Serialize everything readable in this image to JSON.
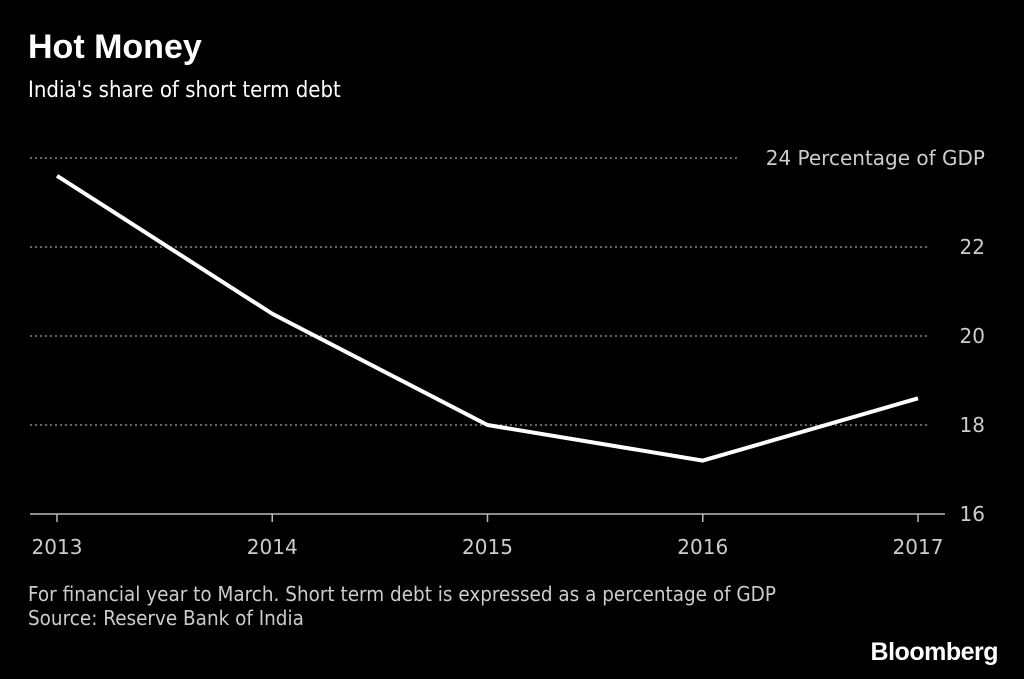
{
  "chart_data": {
    "type": "line",
    "title": "Hot Money",
    "subtitle": "India's share of short term debt",
    "x": [
      "2013",
      "2014",
      "2015",
      "2016",
      "2017"
    ],
    "series": [
      {
        "name": "Short term debt (% of GDP)",
        "values": [
          23.6,
          20.5,
          18.0,
          17.2,
          18.6
        ],
        "color": "#ffffff"
      }
    ],
    "ylabel": "Percentage of GDP",
    "ylim": [
      16,
      24
    ],
    "yticks": [
      16,
      18,
      20,
      22,
      24
    ],
    "ytick_labels": [
      "16",
      "18",
      "20",
      "22",
      "24 Percentage of GDP"
    ],
    "grid": true,
    "yaxis_side": "right"
  },
  "footer": {
    "note": "For financial year to March. Short term debt is expressed as a percentage of GDP",
    "source": "Source: Reserve Bank of India",
    "logo": "Bloomberg"
  }
}
